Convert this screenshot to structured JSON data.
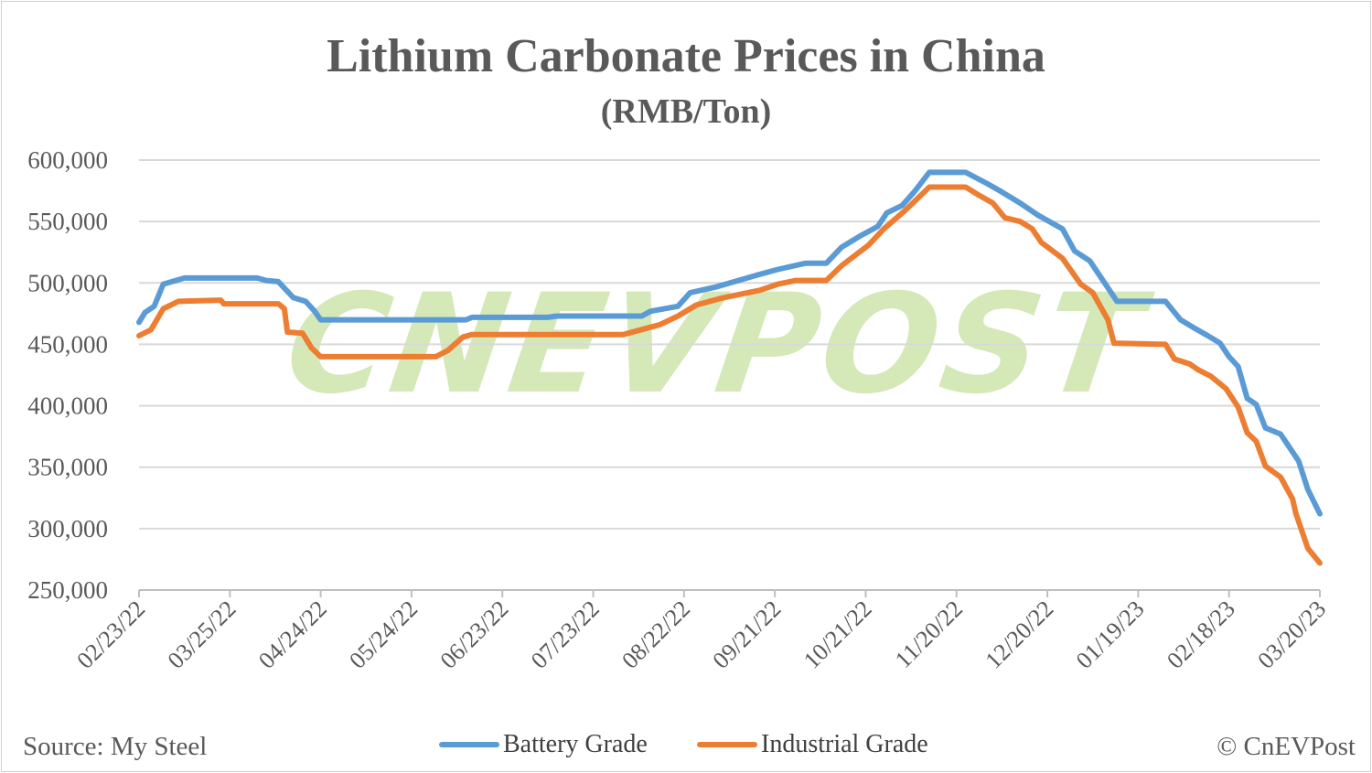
{
  "chart_data": {
    "type": "line",
    "title": "Lithium Carbonate Prices in China",
    "subtitle": "(RMB/Ton)",
    "xlabel": "",
    "ylabel": "",
    "ylim": [
      250000,
      600000
    ],
    "xlim": [
      "2022-02-23",
      "2023-03-20"
    ],
    "yticks": [
      "600,000",
      "550,000",
      "500,000",
      "450,000",
      "400,000",
      "350,000",
      "300,000",
      "250,000"
    ],
    "ytick_values": [
      600000,
      550000,
      500000,
      450000,
      400000,
      350000,
      300000,
      250000
    ],
    "xticks": [
      "02/23/22",
      "03/25/22",
      "04/24/22",
      "05/24/22",
      "06/23/22",
      "07/23/22",
      "08/22/22",
      "09/21/22",
      "10/21/22",
      "11/20/22",
      "12/20/22",
      "01/19/23",
      "02/18/23",
      "03/20/23"
    ],
    "xtick_dates": [
      "2022-02-23",
      "2022-03-25",
      "2022-04-24",
      "2022-05-24",
      "2022-06-23",
      "2022-07-23",
      "2022-08-22",
      "2022-09-21",
      "2022-10-21",
      "2022-11-20",
      "2022-12-20",
      "2023-01-19",
      "2023-02-18",
      "2023-03-20"
    ],
    "grid": true,
    "legend_position": "bottom",
    "series": [
      {
        "name": "Battery Grade",
        "color": "#5b9bd5",
        "points": [
          [
            "2022-02-23",
            468000
          ],
          [
            "2022-02-25",
            476000
          ],
          [
            "2022-02-28",
            481000
          ],
          [
            "2022-03-03",
            499000
          ],
          [
            "2022-03-10",
            504000
          ],
          [
            "2022-04-03",
            504000
          ],
          [
            "2022-04-06",
            502000
          ],
          [
            "2022-04-10",
            501000
          ],
          [
            "2022-04-15",
            488000
          ],
          [
            "2022-04-19",
            485000
          ],
          [
            "2022-04-22",
            477000
          ],
          [
            "2022-04-24",
            470000
          ],
          [
            "2022-06-11",
            470000
          ],
          [
            "2022-06-13",
            472000
          ],
          [
            "2022-07-08",
            472000
          ],
          [
            "2022-07-11",
            473000
          ],
          [
            "2022-08-08",
            473000
          ],
          [
            "2022-08-11",
            477000
          ],
          [
            "2022-08-20",
            481000
          ],
          [
            "2022-08-24",
            492000
          ],
          [
            "2022-09-02",
            497000
          ],
          [
            "2022-09-16",
            507000
          ],
          [
            "2022-09-22",
            511000
          ],
          [
            "2022-10-01",
            516000
          ],
          [
            "2022-10-08",
            516000
          ],
          [
            "2022-10-13",
            529000
          ],
          [
            "2022-10-19",
            538000
          ],
          [
            "2022-10-25",
            546000
          ],
          [
            "2022-10-28",
            557000
          ],
          [
            "2022-11-02",
            563000
          ],
          [
            "2022-11-06",
            574000
          ],
          [
            "2022-11-11",
            590000
          ],
          [
            "2022-11-23",
            590000
          ],
          [
            "2022-11-30",
            581000
          ],
          [
            "2022-12-05",
            574000
          ],
          [
            "2022-12-11",
            565000
          ],
          [
            "2022-12-17",
            555000
          ],
          [
            "2022-12-25",
            544000
          ],
          [
            "2022-12-29",
            526000
          ],
          [
            "2023-01-03",
            518000
          ],
          [
            "2023-01-09",
            496000
          ],
          [
            "2023-01-12",
            485000
          ],
          [
            "2023-01-28",
            485000
          ],
          [
            "2023-02-02",
            470000
          ],
          [
            "2023-02-06",
            464000
          ],
          [
            "2023-02-11",
            457000
          ],
          [
            "2023-02-15",
            451000
          ],
          [
            "2023-02-18",
            440000
          ],
          [
            "2023-02-21",
            432000
          ],
          [
            "2023-02-24",
            406000
          ],
          [
            "2023-02-27",
            401000
          ],
          [
            "2023-03-02",
            382000
          ],
          [
            "2023-03-07",
            377000
          ],
          [
            "2023-03-10",
            366000
          ],
          [
            "2023-03-13",
            355000
          ],
          [
            "2023-03-16",
            332000
          ],
          [
            "2023-03-20",
            312000
          ]
        ]
      },
      {
        "name": "Industrial Grade",
        "color": "#ed7d31",
        "points": [
          [
            "2022-02-23",
            457000
          ],
          [
            "2022-02-27",
            462000
          ],
          [
            "2022-03-03",
            479000
          ],
          [
            "2022-03-08",
            485000
          ],
          [
            "2022-03-22",
            486000
          ],
          [
            "2022-03-23",
            483000
          ],
          [
            "2022-04-10",
            483000
          ],
          [
            "2022-04-12",
            479000
          ],
          [
            "2022-04-13",
            460000
          ],
          [
            "2022-04-18",
            459000
          ],
          [
            "2022-04-21",
            447000
          ],
          [
            "2022-04-24",
            440000
          ],
          [
            "2022-06-01",
            440000
          ],
          [
            "2022-06-05",
            445000
          ],
          [
            "2022-06-10",
            456000
          ],
          [
            "2022-06-13",
            458000
          ],
          [
            "2022-08-02",
            458000
          ],
          [
            "2022-08-08",
            462000
          ],
          [
            "2022-08-14",
            466000
          ],
          [
            "2022-08-20",
            473000
          ],
          [
            "2022-08-26",
            482000
          ],
          [
            "2022-09-04",
            488000
          ],
          [
            "2022-09-16",
            494000
          ],
          [
            "2022-09-22",
            499000
          ],
          [
            "2022-09-28",
            502000
          ],
          [
            "2022-10-08",
            502000
          ],
          [
            "2022-10-13",
            514000
          ],
          [
            "2022-10-22",
            531000
          ],
          [
            "2022-10-27",
            544000
          ],
          [
            "2022-11-03",
            559000
          ],
          [
            "2022-11-11",
            578000
          ],
          [
            "2022-11-23",
            578000
          ],
          [
            "2022-11-27",
            572000
          ],
          [
            "2022-12-02",
            565000
          ],
          [
            "2022-12-06",
            553000
          ],
          [
            "2022-12-11",
            550000
          ],
          [
            "2022-12-15",
            544000
          ],
          [
            "2022-12-18",
            533000
          ],
          [
            "2022-12-25",
            520000
          ],
          [
            "2022-12-31",
            499000
          ],
          [
            "2023-01-04",
            492000
          ],
          [
            "2023-01-09",
            470000
          ],
          [
            "2023-01-11",
            451000
          ],
          [
            "2023-01-28",
            450000
          ],
          [
            "2023-01-31",
            438000
          ],
          [
            "2023-02-05",
            434000
          ],
          [
            "2023-02-08",
            429000
          ],
          [
            "2023-02-12",
            424000
          ],
          [
            "2023-02-17",
            414000
          ],
          [
            "2023-02-21",
            399000
          ],
          [
            "2023-02-24",
            378000
          ],
          [
            "2023-02-27",
            371000
          ],
          [
            "2023-03-02",
            351000
          ],
          [
            "2023-03-07",
            342000
          ],
          [
            "2023-03-11",
            324000
          ],
          [
            "2023-03-12",
            313000
          ],
          [
            "2023-03-16",
            284000
          ],
          [
            "2023-03-20",
            272000
          ]
        ]
      }
    ]
  },
  "watermark": "CnEVPost",
  "source": "Source: My Steel",
  "copyright": "© CnEVPost",
  "colors": {
    "text": "#595959",
    "grid": "#d9d9d9",
    "watermark": "#d5e8b8"
  }
}
